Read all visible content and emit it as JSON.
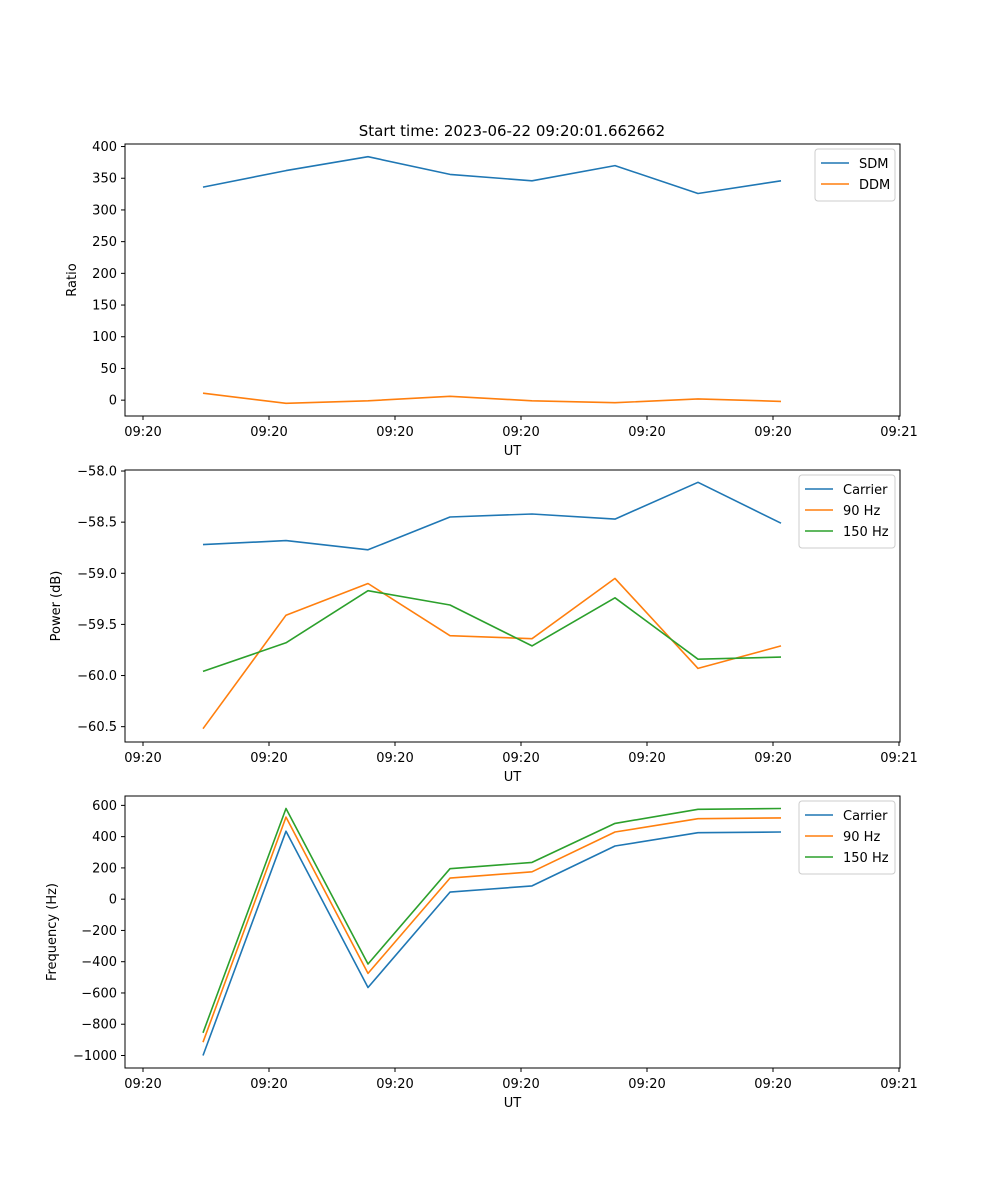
{
  "figure_title": "Start time: 2023-06-22 09:20:01.662662",
  "colors": {
    "blue": "#1f77b4",
    "orange": "#ff7f0e",
    "green": "#2ca02c"
  },
  "chart_data": [
    {
      "type": "line",
      "title": "Start time: 2023-06-22 09:20:01.662662",
      "xlabel": "UT",
      "ylabel": "Ratio",
      "xticks": [
        "09:20",
        "09:20",
        "09:20",
        "09:20",
        "09:20",
        "09:20",
        "09:21"
      ],
      "ylim": [
        -25,
        404
      ],
      "yticks": [
        0,
        50,
        100,
        150,
        200,
        250,
        300,
        350,
        400
      ],
      "legend_placement": "upper right",
      "series": [
        {
          "name": "SDM",
          "color": "#1f77b4",
          "values": [
            336,
            362,
            384,
            356,
            346,
            370,
            326,
            346
          ]
        },
        {
          "name": "DDM",
          "color": "#ff7f0e",
          "values": [
            11,
            -5,
            -1,
            6,
            -1,
            -4,
            2,
            -2
          ]
        }
      ]
    },
    {
      "type": "line",
      "title": "",
      "xlabel": "UT",
      "ylabel": "Power (dB)",
      "xticks": [
        "09:20",
        "09:20",
        "09:20",
        "09:20",
        "09:20",
        "09:20",
        "09:21"
      ],
      "ylim": [
        -60.65,
        -57.99
      ],
      "yticks": [
        -60.5,
        -60.0,
        -59.5,
        -59.0,
        -58.5,
        -58.0
      ],
      "ytick_labels": [
        "−60.5",
        "−60.0",
        "−59.5",
        "−59.0",
        "−58.5",
        "−58.0"
      ],
      "legend_placement": "upper right",
      "series": [
        {
          "name": "Carrier",
          "color": "#1f77b4",
          "values": [
            -58.72,
            -58.68,
            -58.77,
            -58.45,
            -58.42,
            -58.47,
            -58.11,
            -58.51
          ]
        },
        {
          "name": "90 Hz",
          "color": "#ff7f0e",
          "values": [
            -60.52,
            -59.41,
            -59.1,
            -59.61,
            -59.64,
            -59.05,
            -59.93,
            -59.71
          ]
        },
        {
          "name": "150 Hz",
          "color": "#2ca02c",
          "values": [
            -59.96,
            -59.68,
            -59.17,
            -59.31,
            -59.71,
            -59.24,
            -59.84,
            -59.82
          ]
        }
      ]
    },
    {
      "type": "line",
      "title": "",
      "xlabel": "UT",
      "ylabel": "Frequency (Hz)",
      "xticks": [
        "09:20",
        "09:20",
        "09:20",
        "09:20",
        "09:20",
        "09:20",
        "09:21"
      ],
      "ylim": [
        -1080,
        660
      ],
      "yticks": [
        -1000,
        -800,
        -600,
        -400,
        -200,
        0,
        200,
        400,
        600
      ],
      "ytick_labels": [
        "−1000",
        "−800",
        "−600",
        "−400",
        "−200",
        "0",
        "200",
        "400",
        "600"
      ],
      "legend_placement": "upper right",
      "series": [
        {
          "name": "Carrier",
          "color": "#1f77b4",
          "values": [
            -1000,
            435,
            -565,
            45,
            85,
            340,
            425,
            430
          ]
        },
        {
          "name": "90 Hz",
          "color": "#ff7f0e",
          "values": [
            -915,
            525,
            -475,
            135,
            175,
            430,
            515,
            520
          ]
        },
        {
          "name": "150 Hz",
          "color": "#2ca02c",
          "values": [
            -855,
            580,
            -415,
            195,
            235,
            485,
            575,
            580
          ]
        }
      ]
    }
  ]
}
